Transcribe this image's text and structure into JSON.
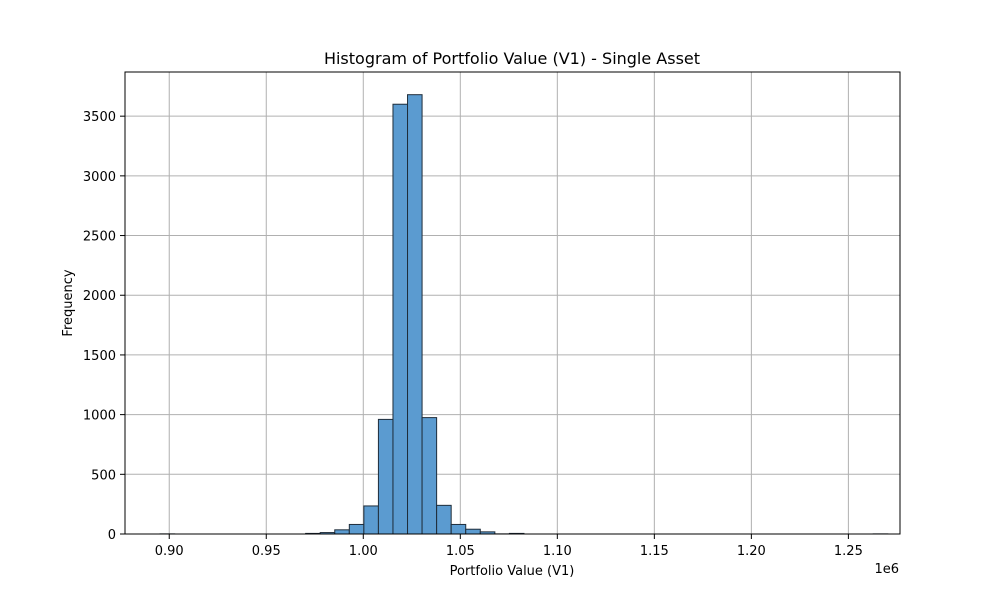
{
  "chart_data": {
    "type": "bar",
    "title": "Histogram of Portfolio Value (V1) - Single Asset",
    "xlabel": "Portfolio Value (V1)",
    "ylabel": "Frequency",
    "x_offset_label": "1e6",
    "xlim": [
      0.8772,
      1.2766
    ],
    "ylim": [
      0,
      3870
    ],
    "grid": true,
    "bar_color": "#5b9bd0",
    "bar_edge_color": "#1f2d3a",
    "x_ticks": [
      0.9,
      0.95,
      1.0,
      1.05,
      1.1,
      1.15,
      1.2,
      1.25
    ],
    "x_tick_labels": [
      "0.90",
      "0.95",
      "1.00",
      "1.05",
      "1.10",
      "1.15",
      "1.20",
      "1.25"
    ],
    "y_ticks": [
      0,
      500,
      1000,
      1500,
      2000,
      2500,
      3000,
      3500
    ],
    "y_tick_labels": [
      "0",
      "500",
      "1000",
      "1500",
      "2000",
      "2500",
      "3000",
      "3500"
    ],
    "bin_start": 0.8953,
    "bin_width": 0.0075,
    "values": [
      1,
      0,
      0,
      0,
      0,
      0,
      0,
      0,
      0,
      0,
      5,
      12,
      35,
      80,
      235,
      960,
      3600,
      3680,
      975,
      240,
      80,
      40,
      18,
      1,
      5,
      0,
      0,
      0,
      0,
      0,
      0,
      0,
      0,
      0,
      0,
      0,
      0,
      0,
      0,
      0,
      0,
      0,
      0,
      0,
      0,
      0,
      0,
      0,
      0,
      1
    ]
  }
}
